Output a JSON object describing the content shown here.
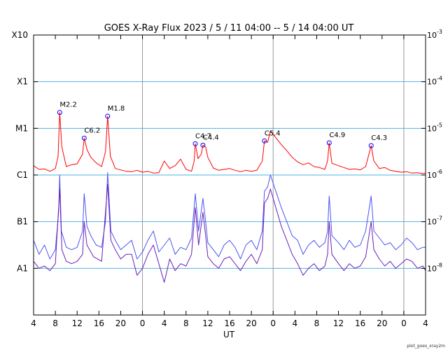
{
  "chart_data": {
    "type": "line",
    "title": "GOES X-Ray Flux   2023  /  5  /  11    04:00 --  5  /  14   04:00    UT",
    "xlabel": "UT",
    "x_range_hours": [
      0,
      72
    ],
    "x_tick_labels": [
      "4",
      "8",
      "12",
      "16",
      "20",
      "0",
      "4",
      "8",
      "12",
      "16",
      "20",
      "0",
      "4",
      "8",
      "12",
      "16",
      "20",
      "0",
      "4"
    ],
    "day_boundaries_hours": [
      20,
      44,
      68
    ],
    "y_log_range": [
      -9,
      -3
    ],
    "left_axis_labels": [
      {
        "label": "A1",
        "log": -8
      },
      {
        "label": "B1",
        "log": -7
      },
      {
        "label": "C1",
        "log": -6
      },
      {
        "label": "M1",
        "log": -5
      },
      {
        "label": "X1",
        "log": -4
      },
      {
        "label": "X10",
        "log": -3
      }
    ],
    "right_axis_labels": [
      {
        "label": "10^-3",
        "log": -3
      },
      {
        "label": "10^-4",
        "log": -4
      },
      {
        "label": "10^-5",
        "log": -5
      },
      {
        "label": "10^-6",
        "log": -6
      },
      {
        "label": "10^-7",
        "log": -7
      },
      {
        "label": "10^-8",
        "log": -8
      }
    ],
    "flares": [
      {
        "label": "M2.2",
        "hour": 4.8,
        "log": -4.66
      },
      {
        "label": "C6.2",
        "hour": 9.3,
        "log": -5.21
      },
      {
        "label": "M1.8",
        "hour": 13.6,
        "log": -4.74
      },
      {
        "label": "C4.7",
        "hour": 29.7,
        "log": -5.33
      },
      {
        "label": "C4.4",
        "hour": 31.1,
        "log": -5.36
      },
      {
        "label": "C5.4",
        "hour": 42.4,
        "log": -5.27
      },
      {
        "label": "C4.9",
        "hour": 54.3,
        "log": -5.31
      },
      {
        "label": "C4.3",
        "hour": 62.0,
        "log": -5.37
      }
    ],
    "series": [
      {
        "name": "long",
        "color": "#ff0000",
        "points": [
          [
            0,
            -5.8
          ],
          [
            1,
            -5.88
          ],
          [
            2,
            -5.87
          ],
          [
            3,
            -5.92
          ],
          [
            4,
            -5.86
          ],
          [
            4.5,
            -5.6
          ],
          [
            4.8,
            -4.66
          ],
          [
            5.2,
            -5.4
          ],
          [
            6,
            -5.82
          ],
          [
            7,
            -5.78
          ],
          [
            8,
            -5.76
          ],
          [
            9,
            -5.55
          ],
          [
            9.3,
            -5.21
          ],
          [
            9.8,
            -5.45
          ],
          [
            10.5,
            -5.62
          ],
          [
            11.5,
            -5.74
          ],
          [
            12.5,
            -5.82
          ],
          [
            13.2,
            -5.5
          ],
          [
            13.6,
            -4.74
          ],
          [
            14.1,
            -5.6
          ],
          [
            15,
            -5.86
          ],
          [
            16,
            -5.89
          ],
          [
            17,
            -5.92
          ],
          [
            18,
            -5.93
          ],
          [
            19,
            -5.9
          ],
          [
            20,
            -5.94
          ],
          [
            21,
            -5.92
          ],
          [
            22,
            -5.96
          ],
          [
            23,
            -5.95
          ],
          [
            24,
            -5.7
          ],
          [
            25,
            -5.86
          ],
          [
            26,
            -5.8
          ],
          [
            27,
            -5.66
          ],
          [
            28,
            -5.88
          ],
          [
            29,
            -5.92
          ],
          [
            29.5,
            -5.7
          ],
          [
            29.7,
            -5.33
          ],
          [
            30.2,
            -5.65
          ],
          [
            30.8,
            -5.55
          ],
          [
            31.1,
            -5.36
          ],
          [
            31.6,
            -5.4
          ],
          [
            32,
            -5.62
          ],
          [
            33,
            -5.85
          ],
          [
            34,
            -5.9
          ],
          [
            35,
            -5.88
          ],
          [
            36,
            -5.86
          ],
          [
            37,
            -5.9
          ],
          [
            38,
            -5.93
          ],
          [
            39,
            -5.9
          ],
          [
            40,
            -5.92
          ],
          [
            41,
            -5.9
          ],
          [
            42,
            -5.7
          ],
          [
            42.4,
            -5.27
          ],
          [
            43,
            -5.3
          ],
          [
            43.5,
            -5.06
          ],
          [
            44.5,
            -5.2
          ],
          [
            45.5,
            -5.35
          ],
          [
            46.5,
            -5.48
          ],
          [
            47.5,
            -5.62
          ],
          [
            48.5,
            -5.72
          ],
          [
            49.5,
            -5.78
          ],
          [
            50.5,
            -5.74
          ],
          [
            51.5,
            -5.82
          ],
          [
            52.5,
            -5.84
          ],
          [
            53.5,
            -5.88
          ],
          [
            54,
            -5.7
          ],
          [
            54.3,
            -5.31
          ],
          [
            54.8,
            -5.75
          ],
          [
            56,
            -5.8
          ],
          [
            57,
            -5.84
          ],
          [
            58,
            -5.88
          ],
          [
            59,
            -5.87
          ],
          [
            60,
            -5.89
          ],
          [
            61,
            -5.82
          ],
          [
            62,
            -5.37
          ],
          [
            62.5,
            -5.7
          ],
          [
            63.5,
            -5.86
          ],
          [
            64.5,
            -5.84
          ],
          [
            65.5,
            -5.9
          ],
          [
            66.5,
            -5.92
          ],
          [
            67.5,
            -5.94
          ],
          [
            68.5,
            -5.93
          ],
          [
            69.5,
            -5.96
          ],
          [
            70.5,
            -5.95
          ],
          [
            71.5,
            -5.97
          ],
          [
            72,
            -5.96
          ]
        ]
      },
      {
        "name": "short",
        "color": "#4a55f0",
        "points": [
          [
            0,
            -7.4
          ],
          [
            1,
            -7.7
          ],
          [
            2,
            -7.5
          ],
          [
            3,
            -7.8
          ],
          [
            4,
            -7.6
          ],
          [
            4.6,
            -6.8
          ],
          [
            4.8,
            -6.0
          ],
          [
            5.1,
            -7.2
          ],
          [
            6,
            -7.55
          ],
          [
            7,
            -7.6
          ],
          [
            8,
            -7.55
          ],
          [
            9,
            -7.2
          ],
          [
            9.3,
            -6.4
          ],
          [
            9.8,
            -7.1
          ],
          [
            10.5,
            -7.3
          ],
          [
            11.5,
            -7.5
          ],
          [
            12.5,
            -7.55
          ],
          [
            13.2,
            -7.0
          ],
          [
            13.6,
            -5.95
          ],
          [
            14.2,
            -7.2
          ],
          [
            15,
            -7.4
          ],
          [
            16,
            -7.6
          ],
          [
            17,
            -7.5
          ],
          [
            18,
            -7.4
          ],
          [
            19,
            -7.8
          ],
          [
            20,
            -7.65
          ],
          [
            21,
            -7.4
          ],
          [
            22,
            -7.2
          ],
          [
            23,
            -7.65
          ],
          [
            24,
            -7.5
          ],
          [
            25,
            -7.35
          ],
          [
            26,
            -7.7
          ],
          [
            27,
            -7.55
          ],
          [
            28,
            -7.6
          ],
          [
            29,
            -7.35
          ],
          [
            29.7,
            -6.4
          ],
          [
            30.3,
            -7.2
          ],
          [
            31.1,
            -6.5
          ],
          [
            31.6,
            -7.0
          ],
          [
            32,
            -7.45
          ],
          [
            33,
            -7.6
          ],
          [
            34,
            -7.75
          ],
          [
            35,
            -7.5
          ],
          [
            36,
            -7.4
          ],
          [
            37,
            -7.55
          ],
          [
            38,
            -7.8
          ],
          [
            39,
            -7.5
          ],
          [
            40,
            -7.4
          ],
          [
            41,
            -7.6
          ],
          [
            42,
            -7.2
          ],
          [
            42.4,
            -6.35
          ],
          [
            43,
            -6.25
          ],
          [
            43.5,
            -6.0
          ],
          [
            44.5,
            -6.35
          ],
          [
            45.5,
            -6.7
          ],
          [
            46.5,
            -7.0
          ],
          [
            47.5,
            -7.3
          ],
          [
            48.5,
            -7.4
          ],
          [
            49.5,
            -7.7
          ],
          [
            50.5,
            -7.5
          ],
          [
            51.5,
            -7.4
          ],
          [
            52.5,
            -7.55
          ],
          [
            53.5,
            -7.45
          ],
          [
            54,
            -7.2
          ],
          [
            54.3,
            -6.45
          ],
          [
            54.8,
            -7.3
          ],
          [
            56,
            -7.45
          ],
          [
            57,
            -7.6
          ],
          [
            58,
            -7.4
          ],
          [
            59,
            -7.55
          ],
          [
            60,
            -7.5
          ],
          [
            61,
            -7.2
          ],
          [
            62,
            -6.45
          ],
          [
            62.5,
            -7.2
          ],
          [
            63.5,
            -7.35
          ],
          [
            64.5,
            -7.5
          ],
          [
            65.5,
            -7.45
          ],
          [
            66.5,
            -7.6
          ],
          [
            67.5,
            -7.5
          ],
          [
            68.5,
            -7.35
          ],
          [
            69.5,
            -7.45
          ],
          [
            70.5,
            -7.6
          ],
          [
            71.5,
            -7.55
          ],
          [
            72,
            -7.55
          ]
        ]
      },
      {
        "name": "short-secondary",
        "color": "#6b1fb8",
        "points": [
          [
            0,
            -7.85
          ],
          [
            1,
            -8.0
          ],
          [
            2,
            -7.95
          ],
          [
            3,
            -8.05
          ],
          [
            4,
            -7.9
          ],
          [
            4.8,
            -6.3
          ],
          [
            5.2,
            -7.6
          ],
          [
            6,
            -7.85
          ],
          [
            7,
            -7.9
          ],
          [
            8,
            -7.85
          ],
          [
            9,
            -7.7
          ],
          [
            9.3,
            -7.0
          ],
          [
            9.8,
            -7.5
          ],
          [
            11,
            -7.75
          ],
          [
            12.5,
            -7.85
          ],
          [
            13.6,
            -6.2
          ],
          [
            14.2,
            -7.4
          ],
          [
            15,
            -7.6
          ],
          [
            16,
            -7.8
          ],
          [
            17,
            -7.7
          ],
          [
            18,
            -7.7
          ],
          [
            19,
            -8.15
          ],
          [
            20,
            -8.0
          ],
          [
            21,
            -7.7
          ],
          [
            22,
            -7.5
          ],
          [
            23,
            -7.9
          ],
          [
            24,
            -8.3
          ],
          [
            25,
            -7.8
          ],
          [
            26,
            -8.05
          ],
          [
            27,
            -7.9
          ],
          [
            28,
            -7.95
          ],
          [
            29,
            -7.7
          ],
          [
            29.7,
            -6.7
          ],
          [
            30.3,
            -7.5
          ],
          [
            31.1,
            -6.8
          ],
          [
            31.6,
            -7.3
          ],
          [
            32,
            -7.75
          ],
          [
            33,
            -7.9
          ],
          [
            34,
            -8.0
          ],
          [
            35,
            -7.8
          ],
          [
            36,
            -7.75
          ],
          [
            37,
            -7.9
          ],
          [
            38,
            -8.05
          ],
          [
            39,
            -7.85
          ],
          [
            40,
            -7.7
          ],
          [
            41,
            -7.9
          ],
          [
            42,
            -7.6
          ],
          [
            42.4,
            -6.6
          ],
          [
            43,
            -6.5
          ],
          [
            43.5,
            -6.3
          ],
          [
            44.5,
            -6.7
          ],
          [
            45.5,
            -7.1
          ],
          [
            46.5,
            -7.4
          ],
          [
            47.5,
            -7.7
          ],
          [
            48.5,
            -7.9
          ],
          [
            49.5,
            -8.15
          ],
          [
            50.5,
            -8.0
          ],
          [
            51.5,
            -7.9
          ],
          [
            52.5,
            -8.05
          ],
          [
            53.5,
            -7.95
          ],
          [
            54,
            -7.7
          ],
          [
            54.3,
            -7.0
          ],
          [
            54.8,
            -7.7
          ],
          [
            56,
            -7.9
          ],
          [
            57,
            -8.05
          ],
          [
            58,
            -7.9
          ],
          [
            59,
            -8.0
          ],
          [
            60,
            -7.95
          ],
          [
            61,
            -7.75
          ],
          [
            62,
            -7.0
          ],
          [
            62.5,
            -7.6
          ],
          [
            63.5,
            -7.8
          ],
          [
            64.5,
            -7.95
          ],
          [
            65.5,
            -7.85
          ],
          [
            66.5,
            -8.0
          ],
          [
            67.5,
            -7.9
          ],
          [
            68.5,
            -7.8
          ],
          [
            69.5,
            -7.85
          ],
          [
            70.5,
            -8.0
          ],
          [
            71.5,
            -7.95
          ],
          [
            72,
            -8.05
          ]
        ]
      }
    ],
    "colors": {
      "grid": "#4db3e6",
      "day_line": "#999999",
      "frame": "#000000",
      "flare_marker": "#0000ff"
    },
    "credit": "plot_goes_xray2m"
  }
}
